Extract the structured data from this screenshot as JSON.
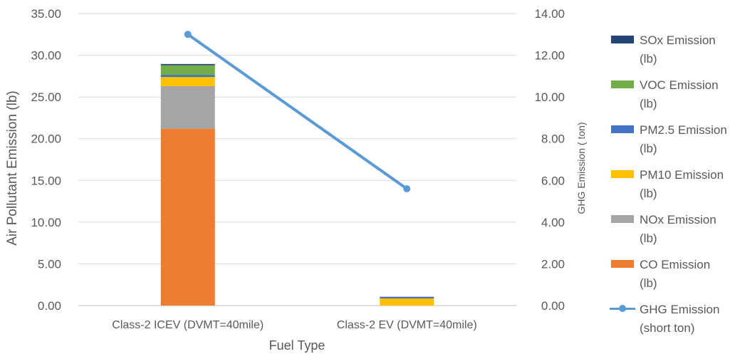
{
  "chart_data": {
    "type": "bar",
    "categories": [
      "Class-2 ICEV (DVMT=40mile)",
      "Class-2 EV (DVMT=40mile)"
    ],
    "xlabel": "Fuel Type",
    "ylabel": "Air Pollutant Emission (lb)",
    "y2label": "GHG Emission ( ton)",
    "ylim": [
      0,
      35
    ],
    "y2lim": [
      0,
      14
    ],
    "yticks": [
      "0.00",
      "5.00",
      "10.00",
      "15.00",
      "20.00",
      "25.00",
      "30.00",
      "35.00"
    ],
    "y2ticks": [
      "0.00",
      "2.00",
      "4.00",
      "6.00",
      "8.00",
      "10.00",
      "12.00",
      "14.00"
    ],
    "grid": true,
    "legend_position": "right",
    "stacked_series": [
      {
        "name": "CO Emission (lb)",
        "color": "#ED7D31",
        "values": [
          21.2,
          0.0
        ]
      },
      {
        "name": "NOx Emission (lb)",
        "color": "#A5A5A5",
        "values": [
          5.1,
          0.0
        ]
      },
      {
        "name": "PM10 Emission (lb)",
        "color": "#FFC000",
        "values": [
          1.1,
          0.85
        ]
      },
      {
        "name": "PM2.5 Emission (lb)",
        "color": "#4472C4",
        "values": [
          0.25,
          0.15
        ]
      },
      {
        "name": "VOC Emission (lb)",
        "color": "#70AD47",
        "values": [
          1.15,
          0.0
        ]
      },
      {
        "name": "SOx Emission (lb)",
        "color": "#264478",
        "values": [
          0.15,
          0.05
        ]
      }
    ],
    "line_series": {
      "name": "GHG Emission (short ton)",
      "color": "#5B9BD5",
      "axis": "secondary",
      "values": [
        13.0,
        5.6
      ]
    }
  },
  "legend": [
    {
      "line1": "SOx Emission",
      "line2": "(lb)",
      "color": "#264478",
      "kind": "box"
    },
    {
      "line1": "VOC Emission",
      "line2": "(lb)",
      "color": "#70AD47",
      "kind": "box"
    },
    {
      "line1": "PM2.5 Emission",
      "line2": "(lb)",
      "color": "#4472C4",
      "kind": "box"
    },
    {
      "line1": "PM10 Emission",
      "line2": "(lb)",
      "color": "#FFC000",
      "kind": "box"
    },
    {
      "line1": "NOx Emission",
      "line2": "(lb)",
      "color": "#A5A5A5",
      "kind": "box"
    },
    {
      "line1": "CO Emission",
      "line2": "(lb)",
      "color": "#ED7D31",
      "kind": "box"
    },
    {
      "line1": "GHG Emission",
      "line2": "(short ton)",
      "color": "#5B9BD5",
      "kind": "line"
    }
  ]
}
